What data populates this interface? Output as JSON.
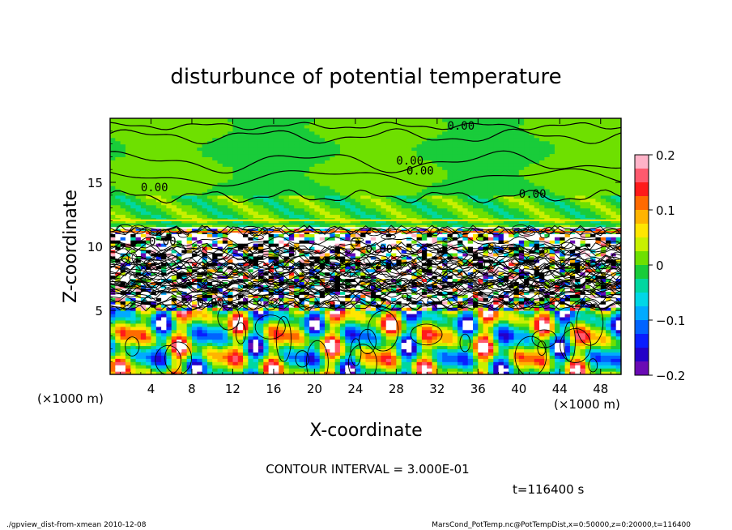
{
  "chart_data": {
    "type": "heatmap",
    "title": "disturbunce of potential temperature",
    "xlabel": "X-coordinate",
    "ylabel": "Z-coordinate",
    "x_unit": "(×1000 m)",
    "y_unit": "(×1000 m)",
    "xlim": [
      0,
      50
    ],
    "ylim": [
      0,
      20
    ],
    "x_ticks": [
      4,
      8,
      12,
      16,
      20,
      24,
      28,
      32,
      36,
      40,
      44,
      48
    ],
    "y_ticks": [
      5,
      10,
      15
    ],
    "colorbar": {
      "range": [
        -0.2,
        0.2
      ],
      "ticks": [
        "0.2",
        "0.1",
        "0",
        "−0.1",
        "−0.2"
      ],
      "tick_values": [
        0.2,
        0.1,
        0,
        -0.1,
        -0.2
      ],
      "colors": [
        "#ffb3c8",
        "#ff5a6e",
        "#ff1a1a",
        "#ff6a00",
        "#ffb400",
        "#ffe600",
        "#c8f000",
        "#6ee000",
        "#19cc3a",
        "#00d7a0",
        "#00d7e6",
        "#00aaff",
        "#0064ff",
        "#0a1eff",
        "#2400c8",
        "#6a0ab4"
      ]
    },
    "contour_labels": [
      "0.00",
      "0.00",
      "0.00",
      "0.00",
      "0.00",
      "0.00",
      "0.00",
      "0.00"
    ],
    "contour_interval": "CONTOUR INTERVAL = 3.000E-01",
    "time_label": "t=116400 s"
  },
  "footer": {
    "left": "./gpview_dist-from-xmean  2010-12-08",
    "right": "MarsCond_PotTemp.nc@PotTempDist,x=0:50000,z=0:20000,t=116400"
  }
}
